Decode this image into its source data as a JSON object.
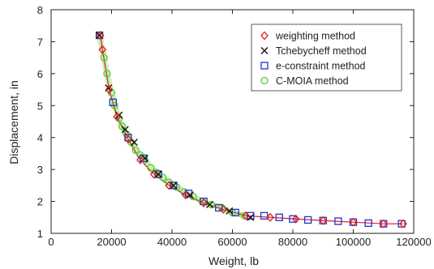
{
  "chart_data": {
    "type": "scatter",
    "title": "",
    "xlabel": "Weight, lb",
    "ylabel": "Displacement, in",
    "xlim": [
      0,
      120000
    ],
    "ylim": [
      1,
      8
    ],
    "xticks": [
      "0",
      "20000",
      "40000",
      "60000",
      "80000",
      "100000",
      "120000"
    ],
    "yticks": [
      "1",
      "2",
      "3",
      "4",
      "5",
      "6",
      "7",
      "8"
    ],
    "legend_position": "top-right",
    "grid": false,
    "series": [
      {
        "name": "weighting method",
        "marker": "diamond",
        "color": "#e0191f",
        "x": [
          16300,
          17000,
          19200,
          21800,
          25500,
          29500,
          34000,
          39000,
          44500,
          50500,
          57000,
          64500,
          72500,
          81000,
          90000,
          100000,
          110000,
          116500
        ],
        "y": [
          7.2,
          6.75,
          5.5,
          4.65,
          3.95,
          3.3,
          2.85,
          2.5,
          2.2,
          1.95,
          1.75,
          1.55,
          1.5,
          1.45,
          1.4,
          1.35,
          1.3,
          1.3
        ]
      },
      {
        "name": "Tchebycheff method",
        "marker": "x",
        "color": "#111111",
        "x": [
          16000,
          19000,
          22500,
          24500,
          27500,
          31000,
          35500,
          40500,
          46000,
          52500,
          59000,
          66000
        ],
        "y": [
          7.2,
          5.55,
          4.7,
          4.25,
          3.85,
          3.35,
          2.85,
          2.5,
          2.2,
          1.9,
          1.7,
          1.5
        ]
      },
      {
        "name": "e-constraint method",
        "marker": "square",
        "color": "#2233cc",
        "x": [
          16000,
          20500,
          25500,
          30500,
          35500,
          40500,
          45500,
          50500,
          55500,
          61000,
          66000,
          70500,
          75500,
          80000,
          85000,
          90000,
          95000,
          100000,
          105000,
          110000,
          116000
        ],
        "y": [
          7.2,
          5.1,
          4.0,
          3.35,
          2.85,
          2.5,
          2.25,
          2.0,
          1.8,
          1.65,
          1.55,
          1.55,
          1.5,
          1.45,
          1.42,
          1.4,
          1.38,
          1.35,
          1.32,
          1.3,
          1.3
        ]
      },
      {
        "name": "C-MOIA method",
        "marker": "circle",
        "color": "#55cc33",
        "x": [
          16000,
          17500,
          18500,
          20000,
          21000,
          22500,
          23500,
          25000,
          26500,
          28000,
          29500,
          31000,
          33000,
          35000,
          37000,
          39000,
          41500,
          44000,
          47000,
          50000,
          53000,
          56500,
          60000,
          64000
        ],
        "y": [
          7.2,
          6.5,
          6.0,
          5.4,
          5.0,
          4.6,
          4.35,
          4.1,
          3.85,
          3.6,
          3.45,
          3.3,
          3.05,
          2.9,
          2.75,
          2.6,
          2.45,
          2.3,
          2.15,
          2.0,
          1.9,
          1.8,
          1.65,
          1.55
        ]
      }
    ]
  }
}
